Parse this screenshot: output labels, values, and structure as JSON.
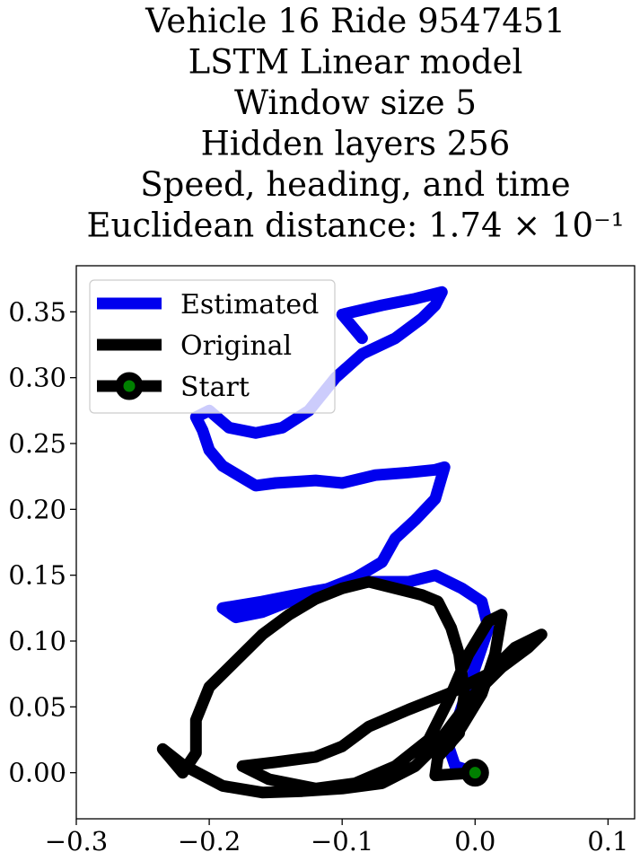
{
  "chart_data": {
    "type": "line",
    "title_lines": [
      "Vehicle 16 Ride 9547451",
      "LSTM Linear model",
      "Window size 5",
      "Hidden layers 256",
      "Speed, heading, and time",
      "Euclidean distance: 1.74 × 10⁻¹"
    ],
    "xlabel": "",
    "ylabel": "",
    "xlim": [
      -0.3,
      0.12
    ],
    "ylim": [
      -0.035,
      0.385
    ],
    "x_ticks": [
      -0.3,
      -0.2,
      -0.1,
      0.0,
      0.1
    ],
    "x_tick_labels": [
      "−0.3",
      "−0.2",
      "−0.1",
      "0.0",
      "0.1"
    ],
    "y_ticks": [
      0.0,
      0.05,
      0.1,
      0.15,
      0.2,
      0.25,
      0.3,
      0.35
    ],
    "y_tick_labels": [
      "0.00",
      "0.05",
      "0.10",
      "0.15",
      "0.20",
      "0.25",
      "0.30",
      "0.35"
    ],
    "grid": false,
    "legend_position": "upper-left",
    "series": [
      {
        "name": "Estimated",
        "color": "#0000ee",
        "points": [
          [
            0.0,
            0.0
          ],
          [
            -0.015,
            0.005
          ],
          [
            -0.02,
            0.02
          ],
          [
            -0.01,
            0.05
          ],
          [
            0.0,
            0.08
          ],
          [
            0.01,
            0.11
          ],
          [
            0.005,
            0.13
          ],
          [
            -0.01,
            0.14
          ],
          [
            -0.03,
            0.15
          ],
          [
            -0.05,
            0.145
          ],
          [
            -0.08,
            0.145
          ],
          [
            -0.12,
            0.138
          ],
          [
            -0.16,
            0.13
          ],
          [
            -0.19,
            0.125
          ],
          [
            -0.18,
            0.118
          ],
          [
            -0.16,
            0.122
          ],
          [
            -0.14,
            0.13
          ],
          [
            -0.11,
            0.14
          ],
          [
            -0.09,
            0.148
          ],
          [
            -0.07,
            0.16
          ],
          [
            -0.06,
            0.178
          ],
          [
            -0.045,
            0.192
          ],
          [
            -0.03,
            0.208
          ],
          [
            -0.023,
            0.232
          ],
          [
            -0.03,
            0.23
          ],
          [
            -0.05,
            0.228
          ],
          [
            -0.075,
            0.226
          ],
          [
            -0.1,
            0.22
          ],
          [
            -0.12,
            0.222
          ],
          [
            -0.15,
            0.22
          ],
          [
            -0.165,
            0.218
          ],
          [
            -0.19,
            0.233
          ],
          [
            -0.2,
            0.245
          ],
          [
            -0.205,
            0.26
          ],
          [
            -0.21,
            0.27
          ],
          [
            -0.2,
            0.275
          ],
          [
            -0.185,
            0.262
          ],
          [
            -0.165,
            0.258
          ],
          [
            -0.145,
            0.262
          ],
          [
            -0.125,
            0.275
          ],
          [
            -0.105,
            0.3
          ],
          [
            -0.085,
            0.318
          ],
          [
            -0.06,
            0.33
          ],
          [
            -0.04,
            0.345
          ],
          [
            -0.03,
            0.355
          ],
          [
            -0.025,
            0.365
          ],
          [
            -0.045,
            0.36
          ],
          [
            -0.07,
            0.355
          ],
          [
            -0.1,
            0.348
          ],
          [
            -0.085,
            0.33
          ]
        ]
      },
      {
        "name": "Original",
        "color": "#000000",
        "points": [
          [
            0.0,
            0.0
          ],
          [
            -0.03,
            -0.002
          ],
          [
            -0.028,
            0.012
          ],
          [
            -0.012,
            0.03
          ],
          [
            -0.008,
            0.06
          ],
          [
            -0.012,
            0.09
          ],
          [
            -0.018,
            0.11
          ],
          [
            -0.028,
            0.13
          ],
          [
            -0.04,
            0.135
          ],
          [
            -0.06,
            0.14
          ],
          [
            -0.08,
            0.145
          ],
          [
            -0.1,
            0.14
          ],
          [
            -0.12,
            0.132
          ],
          [
            -0.14,
            0.12
          ],
          [
            -0.16,
            0.105
          ],
          [
            -0.18,
            0.085
          ],
          [
            -0.2,
            0.065
          ],
          [
            -0.21,
            0.04
          ],
          [
            -0.21,
            0.015
          ],
          [
            -0.22,
            0.0
          ],
          [
            -0.235,
            0.018
          ],
          [
            -0.22,
            0.006
          ],
          [
            -0.19,
            -0.01
          ],
          [
            -0.16,
            -0.015
          ],
          [
            -0.13,
            -0.014
          ],
          [
            -0.1,
            -0.012
          ],
          [
            -0.07,
            -0.008
          ],
          [
            -0.045,
            0.005
          ],
          [
            -0.03,
            0.02
          ],
          [
            -0.015,
            0.04
          ],
          [
            0.0,
            0.06
          ],
          [
            0.02,
            0.08
          ],
          [
            0.04,
            0.095
          ],
          [
            0.05,
            0.105
          ],
          [
            0.03,
            0.095
          ],
          [
            0.01,
            0.075
          ],
          [
            -0.02,
            0.06
          ],
          [
            -0.05,
            0.048
          ],
          [
            -0.08,
            0.035
          ],
          [
            -0.1,
            0.02
          ],
          [
            -0.12,
            0.012
          ],
          [
            -0.15,
            0.008
          ],
          [
            -0.175,
            0.005
          ],
          [
            -0.155,
            -0.005
          ],
          [
            -0.12,
            -0.012
          ],
          [
            -0.09,
            -0.008
          ],
          [
            -0.06,
            0.005
          ],
          [
            -0.035,
            0.025
          ],
          [
            -0.02,
            0.055
          ],
          [
            -0.005,
            0.09
          ],
          [
            0.01,
            0.115
          ],
          [
            0.02,
            0.12
          ],
          [
            0.015,
            0.09
          ],
          [
            0.005,
            0.06
          ],
          [
            -0.01,
            0.035
          ],
          [
            -0.02,
            0.02
          ],
          [
            -0.028,
            0.025
          ]
        ]
      }
    ],
    "start_marker": {
      "name": "Start",
      "x": 0.0,
      "y": 0.0,
      "fill": "#008000",
      "edge": "#000000"
    }
  }
}
